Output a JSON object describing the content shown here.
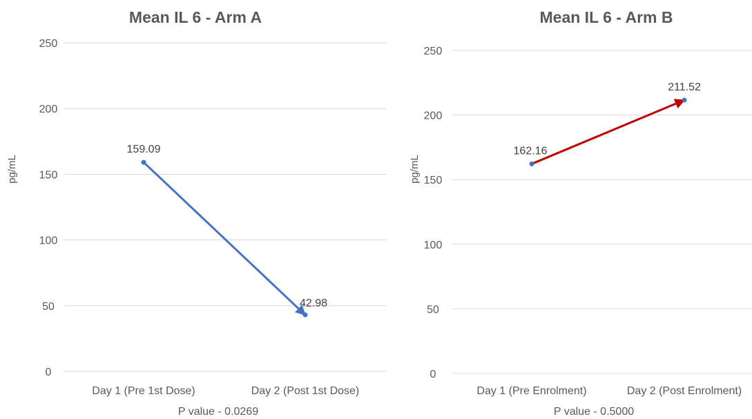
{
  "chart_data": [
    {
      "type": "line",
      "title": "Mean IL 6  - Arm A",
      "ylabel": "pg/mL",
      "xlabel": "P value - 0.0269",
      "categories": [
        "Day 1 (Pre 1st Dose)",
        "Day 2 (Post 1st Dose)"
      ],
      "values": [
        159.09,
        42.98
      ],
      "data_labels": [
        "159.09",
        "42.98"
      ],
      "yticks": [
        "0",
        "50",
        "100",
        "150",
        "200",
        "250"
      ],
      "ylim": [
        0,
        250
      ],
      "grid": true,
      "line_color": "#4472c4",
      "arrow": true
    },
    {
      "type": "line",
      "title": "Mean IL 6 - Arm B",
      "ylabel": "pg/mL",
      "xlabel": "P value - 0.5000",
      "categories": [
        "Day 1 (Pre Enrolment)",
        "Day 2 (Post Enrolment)"
      ],
      "values": [
        162.16,
        211.52
      ],
      "data_labels": [
        "162.16",
        "211.52"
      ],
      "yticks": [
        "0",
        "50",
        "100",
        "150",
        "200",
        "250"
      ],
      "ylim": [
        0,
        250
      ],
      "grid": true,
      "line_color": "#c00000",
      "marker_color": "#4472c4",
      "arrow": true
    }
  ]
}
